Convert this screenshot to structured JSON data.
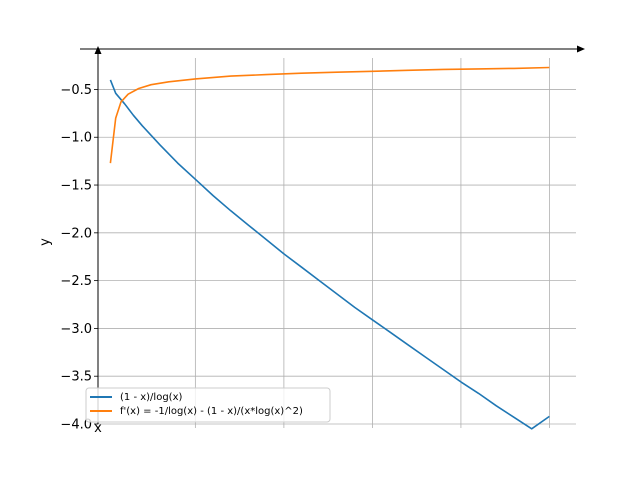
{
  "chart_data": {
    "type": "line",
    "title": "",
    "xlabel": "x",
    "ylabel": "y",
    "xlim": [
      -0.05,
      2.65
    ],
    "ylim": [
      -4.0,
      -0.15
    ],
    "x_gridlines": [
      0.5,
      1.0,
      1.5,
      2.0,
      2.5
    ],
    "y_ticks": [
      -4.0,
      -3.5,
      -3.0,
      -2.5,
      -2.0,
      -1.5,
      -1.0,
      -0.5
    ],
    "y_tick_labels": [
      "−4.0",
      "−3.5",
      "−3.0",
      "−2.5",
      "−2.0",
      "−1.5",
      "−1.0",
      "−0.5"
    ],
    "grid": true,
    "legend_position": "lower-left",
    "series": [
      {
        "name": "(1 - x)/log(x)",
        "color": "#1f77b4",
        "x": [
          0.02,
          0.05,
          0.1,
          0.15,
          0.2,
          0.3,
          0.4,
          0.5,
          0.6,
          0.7,
          0.8,
          0.9,
          1.0,
          1.1,
          1.2,
          1.3,
          1.4,
          1.5,
          1.6,
          1.7,
          1.8,
          1.9,
          2.0,
          2.1,
          2.2,
          2.3,
          2.4,
          2.5
        ],
        "y": [
          -0.4,
          -0.54,
          -0.65,
          -0.77,
          -0.88,
          -1.08,
          -1.27,
          -1.44,
          -1.61,
          -1.77,
          -1.92,
          -2.07,
          -2.22,
          -2.36,
          -2.5,
          -2.64,
          -2.78,
          -2.91,
          -3.04,
          -3.17,
          -3.3,
          -3.43,
          -3.56,
          -3.68,
          -3.81,
          -3.93,
          -4.05,
          -3.92
        ]
      },
      {
        "name": "f'(x) = -1/log(x) - (1 - x)/(x*log(x)^2)",
        "color": "#ff7f0e",
        "x": [
          0.02,
          0.05,
          0.08,
          0.12,
          0.18,
          0.25,
          0.35,
          0.5,
          0.7,
          0.9,
          1.1,
          1.3,
          1.5,
          1.7,
          1.9,
          2.1,
          2.3,
          2.5
        ],
        "y": [
          -1.27,
          -0.8,
          -0.63,
          -0.55,
          -0.49,
          -0.45,
          -0.42,
          -0.39,
          -0.36,
          -0.345,
          -0.33,
          -0.32,
          -0.31,
          -0.3,
          -0.29,
          -0.285,
          -0.28,
          -0.27
        ]
      }
    ]
  }
}
